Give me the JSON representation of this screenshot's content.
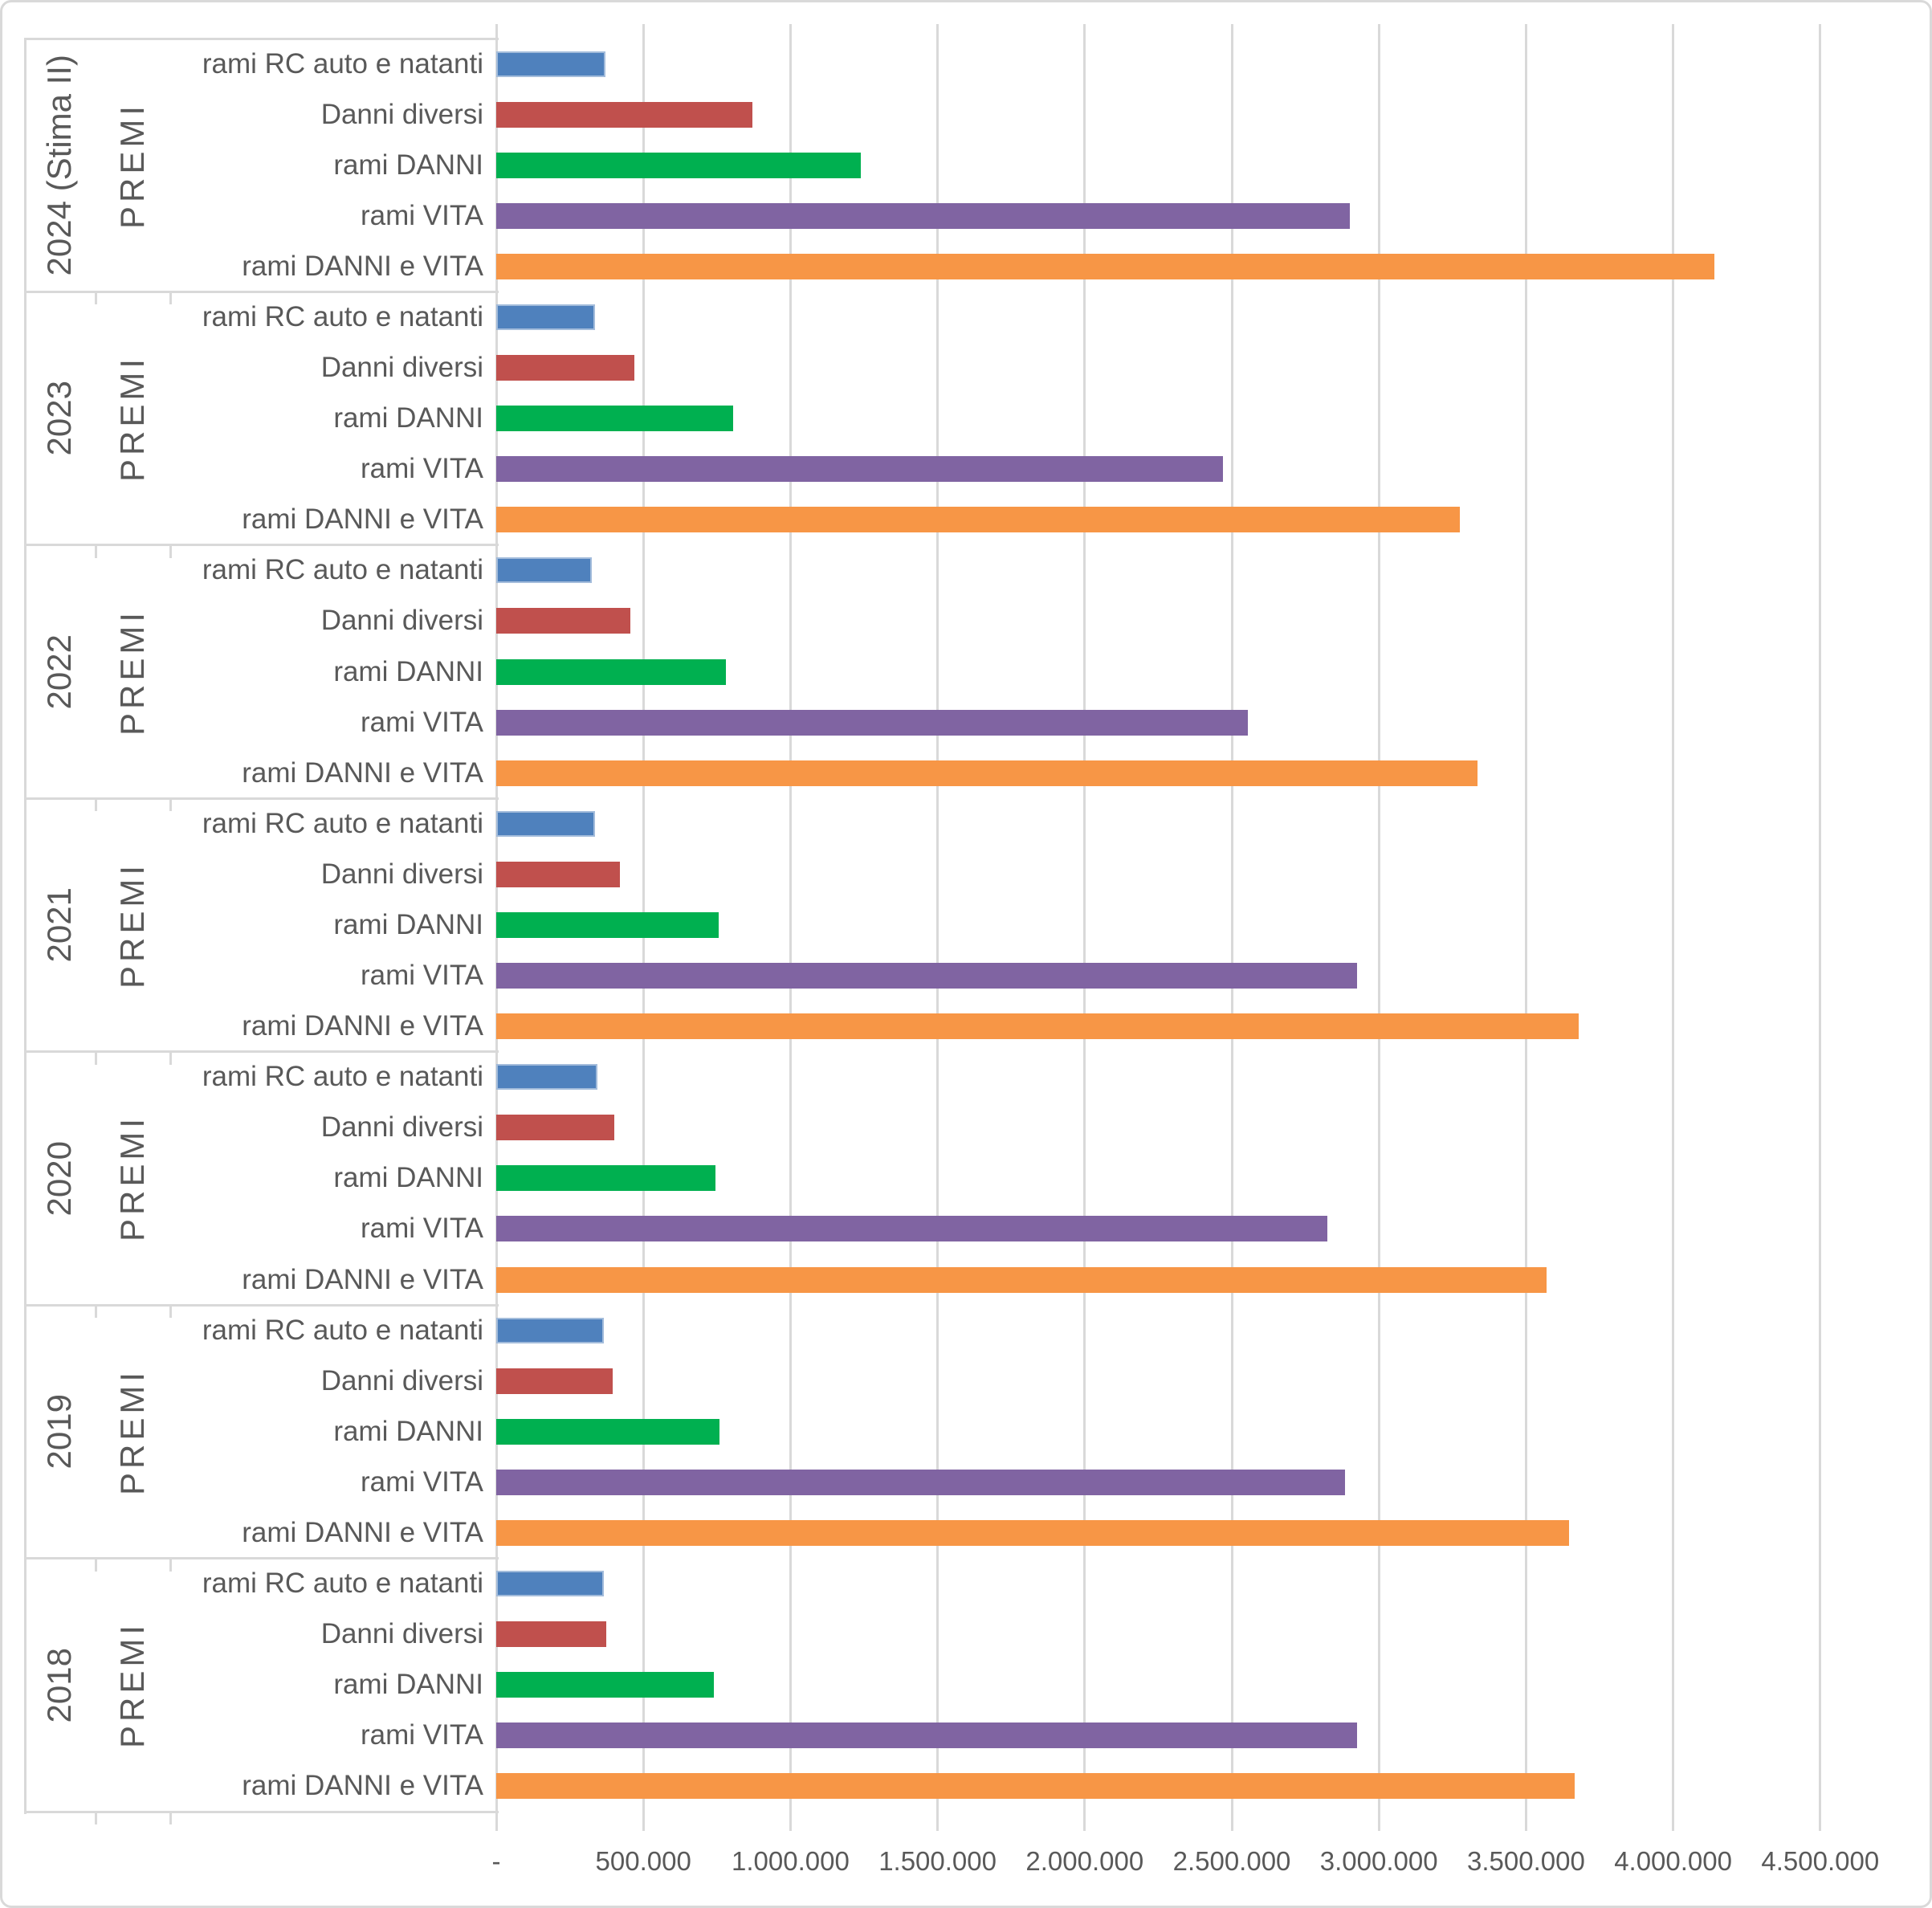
{
  "chart_data": {
    "type": "bar",
    "orientation": "horizontal",
    "title": "",
    "section_label": "PREMI",
    "categories": [
      "rami RC auto e natanti",
      "Danni diversi",
      "rami DANNI",
      "rami VITA",
      "rami DANNI e VITA"
    ],
    "series_colors": {
      "rami RC auto e natanti": "#4F81BD",
      "Danni diversi": "#C0504D",
      "rami DANNI": "#00B050",
      "rami VITA": "#8064A2",
      "rami DANNI e VITA": "#F79646"
    },
    "groups": [
      {
        "year": "2024 (Stima II)",
        "section": "PREMI",
        "values": [
          370000,
          870000,
          1240000,
          2900000,
          4140000
        ]
      },
      {
        "year": "2023",
        "section": "PREMI",
        "values": [
          335000,
          470000,
          805000,
          2470000,
          3275000
        ]
      },
      {
        "year": "2022",
        "section": "PREMI",
        "values": [
          325000,
          455000,
          780000,
          2555000,
          3335000
        ]
      },
      {
        "year": "2021",
        "section": "PREMI",
        "values": [
          335000,
          420000,
          755000,
          2925000,
          3680000
        ]
      },
      {
        "year": "2020",
        "section": "PREMI",
        "values": [
          345000,
          400000,
          745000,
          2825000,
          3570000
        ]
      },
      {
        "year": "2019",
        "section": "PREMI",
        "values": [
          365000,
          395000,
          760000,
          2885000,
          3645000
        ]
      },
      {
        "year": "2018",
        "section": "PREMI",
        "values": [
          365000,
          375000,
          740000,
          2925000,
          3665000
        ]
      }
    ],
    "x_axis": {
      "tick_labels": [
        "-",
        "500.000",
        "1.000.000",
        "1.500.000",
        "2.000.000",
        "2.500.000",
        "3.000.000",
        "3.500.000",
        "4.000.000",
        "4.500.000"
      ],
      "tick_values": [
        0,
        500000,
        1000000,
        1500000,
        2000000,
        2500000,
        3000000,
        3500000,
        4000000,
        4500000
      ],
      "min": 0,
      "max": 4500000,
      "grid": true,
      "legend": "none"
    },
    "style_colors": {
      "gridline": "#D9D9D9",
      "frame_border": "#D9D9D9",
      "text": "#595959",
      "blue_bar_border": "#A3BCDB"
    }
  }
}
